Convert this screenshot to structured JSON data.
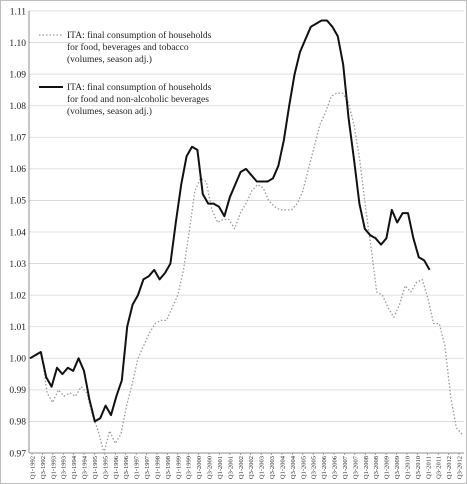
{
  "chart_data": {
    "type": "line",
    "title": "",
    "xlabel": "",
    "ylabel": "",
    "ylim": [
      0.97,
      1.11
    ],
    "yticks": [
      "0.97",
      "0.98",
      "0.99",
      "1.00",
      "1.01",
      "1.02",
      "1.03",
      "1.04",
      "1.05",
      "1.06",
      "1.07",
      "1.08",
      "1.09",
      "1.10",
      "1.11"
    ],
    "grid": "horizontal",
    "legend_position": "top-left",
    "x_tick_labels": [
      "Q1-1992",
      "Q3-1992",
      "Q1-1993",
      "Q3-1993",
      "Q1-1994",
      "Q3-1994",
      "Q1-1995",
      "Q3-1995",
      "Q1-1996",
      "Q3-1996",
      "Q1-1997",
      "Q3-1997",
      "Q1-1998",
      "Q3-1998",
      "Q1-1999",
      "Q3-1999",
      "Q1-2000",
      "Q3-2000",
      "Q1-2001",
      "Q3-2001",
      "Q1-2002",
      "Q3-2002",
      "Q1-2003",
      "Q3-2003",
      "Q1-2004",
      "Q3-2004",
      "Q1-2005",
      "Q3-2005",
      "Q1-2006",
      "Q3-2006",
      "Q1-2007",
      "Q3-2007",
      "Q1-2008",
      "Q3-2008",
      "Q1-2009",
      "Q3-2009",
      "Q1-2010",
      "Q3-2010",
      "Q1-2011",
      "Q3-2011",
      "Q1-2012",
      "Q3-2012"
    ],
    "series": [
      {
        "name": "ITA: final consumption of households for food, beverages and tobacco (volumes, season adj.)",
        "style": "dotted",
        "color": "#9a9a9a",
        "values": [
          1.0,
          1.001,
          1.002,
          0.989,
          0.986,
          0.99,
          0.988,
          0.989,
          0.988,
          0.991,
          0.989,
          0.982,
          0.977,
          0.97,
          0.977,
          0.973,
          0.976,
          0.985,
          0.992,
          1.0,
          1.004,
          1.008,
          1.011,
          1.012,
          1.012,
          1.016,
          1.02,
          1.028,
          1.04,
          1.053,
          1.057,
          1.056,
          1.047,
          1.043,
          1.044,
          1.044,
          1.041,
          1.046,
          1.049,
          1.053,
          1.055,
          1.054,
          1.05,
          1.048,
          1.047,
          1.047,
          1.047,
          1.049,
          1.053,
          1.06,
          1.067,
          1.074,
          1.078,
          1.083,
          1.084,
          1.084,
          1.081,
          1.074,
          1.063,
          1.048,
          1.035,
          1.021,
          1.02,
          1.016,
          1.013,
          1.017,
          1.023,
          1.021,
          1.024,
          1.025,
          1.019,
          1.011,
          1.011,
          1.004,
          0.988,
          0.978,
          0.976
        ]
      },
      {
        "name": "ITA: final consumption of households for food and non-alcoholic beverages (volumes, season adj.)",
        "style": "solid",
        "color": "#111111",
        "values": [
          1.0,
          1.001,
          1.002,
          0.994,
          0.991,
          0.997,
          0.995,
          0.997,
          0.996,
          1.0,
          0.996,
          0.987,
          0.98,
          0.981,
          0.985,
          0.982,
          0.988,
          0.993,
          1.01,
          1.017,
          1.02,
          1.025,
          1.026,
          1.028,
          1.025,
          1.027,
          1.03,
          1.043,
          1.055,
          1.064,
          1.067,
          1.066,
          1.052,
          1.049,
          1.049,
          1.048,
          1.045,
          1.051,
          1.055,
          1.059,
          1.06,
          1.058,
          1.056,
          1.056,
          1.056,
          1.057,
          1.061,
          1.069,
          1.08,
          1.09,
          1.097,
          1.101,
          1.105,
          1.106,
          1.107,
          1.107,
          1.105,
          1.102,
          1.093,
          1.076,
          1.063,
          1.049,
          1.041,
          1.039,
          1.038,
          1.036,
          1.038,
          1.047,
          1.043,
          1.046,
          1.046,
          1.038,
          1.032,
          1.031,
          1.028
        ]
      }
    ]
  }
}
